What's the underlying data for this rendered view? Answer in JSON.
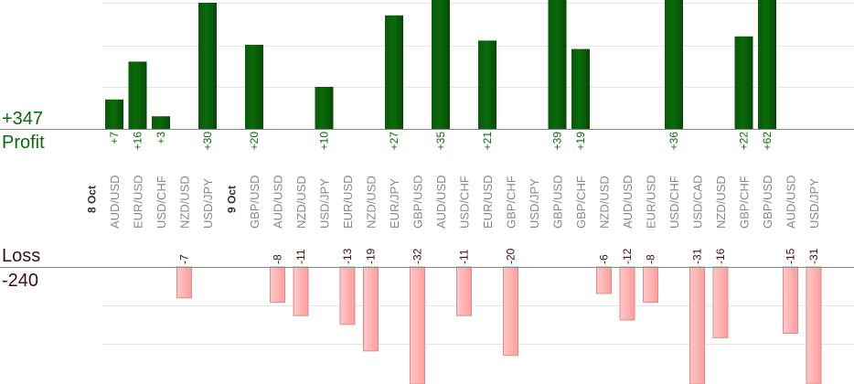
{
  "summary": {
    "profit_total": "+347",
    "profit_label": "Profit",
    "loss_label": "Loss",
    "loss_total": "-240"
  },
  "colors": {
    "profit_bar": "#0b6b0b",
    "profit_text": "#0b6b0b",
    "loss_bar": "#ffb3b3",
    "loss_border": "#e08a8a",
    "loss_text": "#3a1010",
    "pair_text": "#888888",
    "date_text": "#333333",
    "grid": "#e6e6e6",
    "axis": "#888888"
  },
  "chart_data": {
    "type": "bar",
    "date_groups": [
      {
        "label": "8 Oct",
        "first_index": 0
      },
      {
        "label": "9 Oct",
        "first_index": 5
      }
    ],
    "categories": [
      "AUD/USD",
      "EUR/USD",
      "USD/CHF",
      "NZD/USD",
      "USD/JPY",
      "GBP/USD",
      "AUD/USD",
      "NZD/USD",
      "USD/JPY",
      "EUR/USD",
      "NZD/USD",
      "EUR/JPY",
      "GBP/USD",
      "AUD/USD",
      "USD/CHF",
      "EUR/USD",
      "GBP/CHF",
      "USD/JPY",
      "GBP/USD",
      "GBP/CHF",
      "NZD/USD",
      "AUD/USD",
      "EUR/USD",
      "USD/CHF",
      "USD/CAD",
      "NZD/USD",
      "GBP/CHF",
      "GBP/USD",
      "AUD/USD",
      "USD/JPY"
    ],
    "series": [
      {
        "name": "Profit",
        "values": [
          7,
          16,
          3,
          null,
          30,
          20,
          null,
          null,
          10,
          null,
          null,
          27,
          null,
          35,
          null,
          21,
          null,
          null,
          39,
          19,
          null,
          null,
          null,
          36,
          null,
          null,
          22,
          62,
          null,
          null
        ],
        "labels": [
          "+7",
          "+16",
          "+3",
          "",
          "+30",
          "+20",
          "",
          "",
          "+10",
          "",
          "",
          "+27",
          "",
          "+35",
          "",
          "+21",
          "",
          "",
          "+39",
          "+19",
          "",
          "",
          "",
          "+36",
          "",
          "",
          "+22",
          "+62",
          "",
          ""
        ]
      },
      {
        "name": "Loss",
        "values": [
          null,
          null,
          null,
          -7,
          null,
          null,
          -8,
          -11,
          null,
          -13,
          -19,
          null,
          -32,
          null,
          -11,
          null,
          -20,
          null,
          null,
          null,
          -6,
          -12,
          -8,
          null,
          -31,
          -16,
          null,
          null,
          -15,
          -31
        ],
        "labels": [
          "",
          "",
          "",
          "-7",
          "",
          "",
          "-8",
          "-11",
          "",
          "-13",
          "-19",
          "",
          "-32",
          "",
          "-11",
          "",
          "-20",
          "",
          "",
          "",
          "-6",
          "-12",
          "-8",
          "",
          "-31",
          "-16",
          "",
          "",
          "-15",
          "-31"
        ]
      }
    ],
    "profit_ylim": [
      0,
      30
    ],
    "loss_ylim": [
      -24,
      0
    ],
    "grid": true
  }
}
